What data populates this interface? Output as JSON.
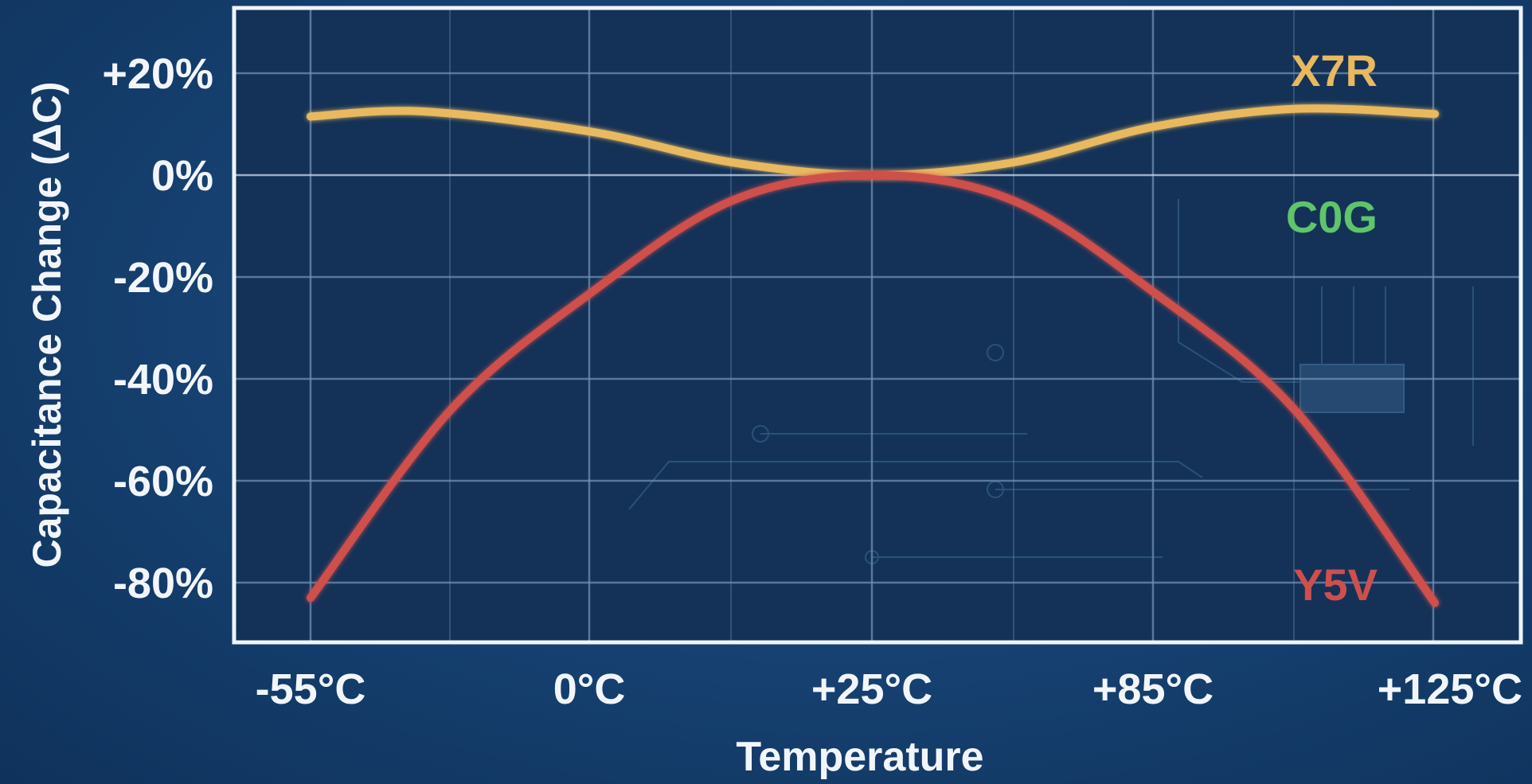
{
  "colors": {
    "background": "#174374",
    "plot_background": "#143257",
    "grid": "#6f8fb3",
    "frame": "#eef4fb",
    "text": "#f2f6fb",
    "x7r": "#e8b95e",
    "c0g": "#5fc46a",
    "y5v": "#cf4f4c"
  },
  "chart_data": {
    "type": "line",
    "xlabel": "Temperature",
    "ylabel": "Capacitance Change (ΔC)",
    "ylim": [
      -92,
      33
    ],
    "y_ticks": [
      {
        "value": 20,
        "label": "+20%"
      },
      {
        "value": 0,
        "label": "0%"
      },
      {
        "value": -20,
        "label": "-20%"
      },
      {
        "value": -40,
        "label": "-40%"
      },
      {
        "value": -60,
        "label": "-60%"
      },
      {
        "value": -80,
        "label": "-80%"
      }
    ],
    "x_ticks": [
      "-55°C",
      "0°C",
      "+25°C",
      "+85°C",
      "+125°C"
    ],
    "grid": true,
    "series": [
      {
        "name": "X7R",
        "color": "#e8b95e",
        "x_units": [
          0,
          0.4,
          1.0,
          1.5,
          2.0,
          2.5,
          3.0,
          3.5,
          4.0
        ],
        "values": [
          11.5,
          12.5,
          8.5,
          2.5,
          0,
          2.5,
          9.5,
          13,
          12
        ]
      },
      {
        "name": "C0G",
        "color": "#5fc46a",
        "x_units": [
          0,
          4.0
        ],
        "values": [
          0,
          0
        ]
      },
      {
        "name": "Y5V",
        "color": "#cf4f4c",
        "x_units": [
          0,
          0.5,
          1.0,
          1.5,
          2.0,
          2.5,
          3.0,
          3.5,
          4.0
        ],
        "values": [
          -83,
          -46,
          -23,
          -5,
          0,
          -5,
          -23,
          -46,
          -84
        ]
      }
    ]
  }
}
